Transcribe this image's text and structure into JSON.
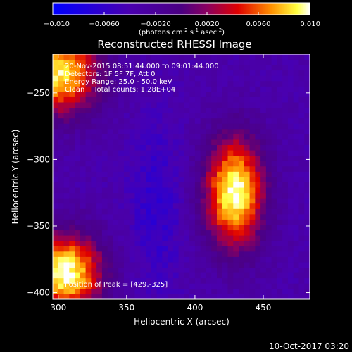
{
  "colorbar": {
    "ticks": [
      "-0.010",
      "-0.0060",
      "-0.0020",
      "0.0020",
      "0.0060",
      "0.010"
    ],
    "tick_values": [
      -0.01,
      -0.006,
      -0.002,
      0.002,
      0.006,
      0.01
    ],
    "range": [
      -0.01,
      0.01
    ],
    "units_prefix": "(photons cm",
    "units_sup1": "-2",
    "units_mid1": " s",
    "units_sup2": "-1",
    "units_mid2": " asec",
    "units_sup3": "-2",
    "units_suffix": ")"
  },
  "chart_data": {
    "type": "heatmap",
    "title": "Reconstructed RHESSI Image",
    "xlabel": "Heliocentric X (arcsec)",
    "ylabel": "Heliocentric Y (arcsec)",
    "xlim": [
      296,
      484
    ],
    "ylim": [
      -405,
      -221
    ],
    "xticks": [
      300,
      350,
      400,
      450
    ],
    "yticks": [
      -250,
      -300,
      -350,
      -400
    ],
    "color_scale": "RHESSI color table, blue (negative) to purple to red, yellow and white (positive)",
    "sources": [
      {
        "x": 429,
        "y": -325,
        "peak": 0.01,
        "note": "main source"
      },
      {
        "x": 300,
        "y": -235,
        "peak": 0.009,
        "note": "upper-left source"
      },
      {
        "x": 305,
        "y": -385,
        "peak": 0.01,
        "note": "lower-left source"
      }
    ],
    "annotations": [
      "20-Nov-2015 08:51:44.000 to 09:01:44.000",
      "Detectors: 1F 5F 7F, Att 0",
      "Energy Range: 25.0 - 50.0 keV",
      "Clean    Total counts: 1.28E+04",
      "Position of Peak = [429,-325]"
    ]
  },
  "footer": {
    "timestamp": "10-Oct-2017 03:20"
  }
}
